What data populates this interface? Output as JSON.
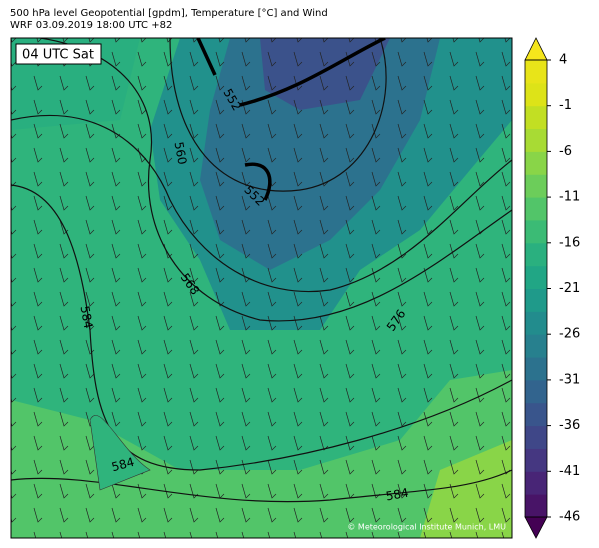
{
  "header": {
    "title": "500 hPa level Geopotential [gpdm], Temperature [°C] and Wind",
    "subtitle": "WRF 03.09.2019 18:00 UTC +82"
  },
  "map": {
    "time_label": "04 UTC Sat",
    "contour_labels": [
      "552",
      "560",
      "552",
      "568",
      "584",
      "576",
      "584",
      "584"
    ],
    "credit": "© Meteorological Institute Munich, LMU"
  },
  "colorbar": {
    "clim": [
      -46,
      4
    ],
    "ticks": [
      4,
      -1,
      -6,
      -11,
      -16,
      -21,
      -26,
      -31,
      -36,
      -41,
      -46
    ],
    "colors": [
      "#481467",
      "#482576",
      "#453781",
      "#3f4788",
      "#39558c",
      "#32648e",
      "#2c728e",
      "#27808e",
      "#228c8d",
      "#1f9a8a",
      "#21a685",
      "#2ab07f",
      "#3bbb75",
      "#52c569",
      "#6ccd5a",
      "#89d548",
      "#a8db34",
      "#c2df23",
      "#dde318",
      "#e8e419"
    ],
    "extend_low": "#440154",
    "extend_high": "#f5e61c"
  }
}
